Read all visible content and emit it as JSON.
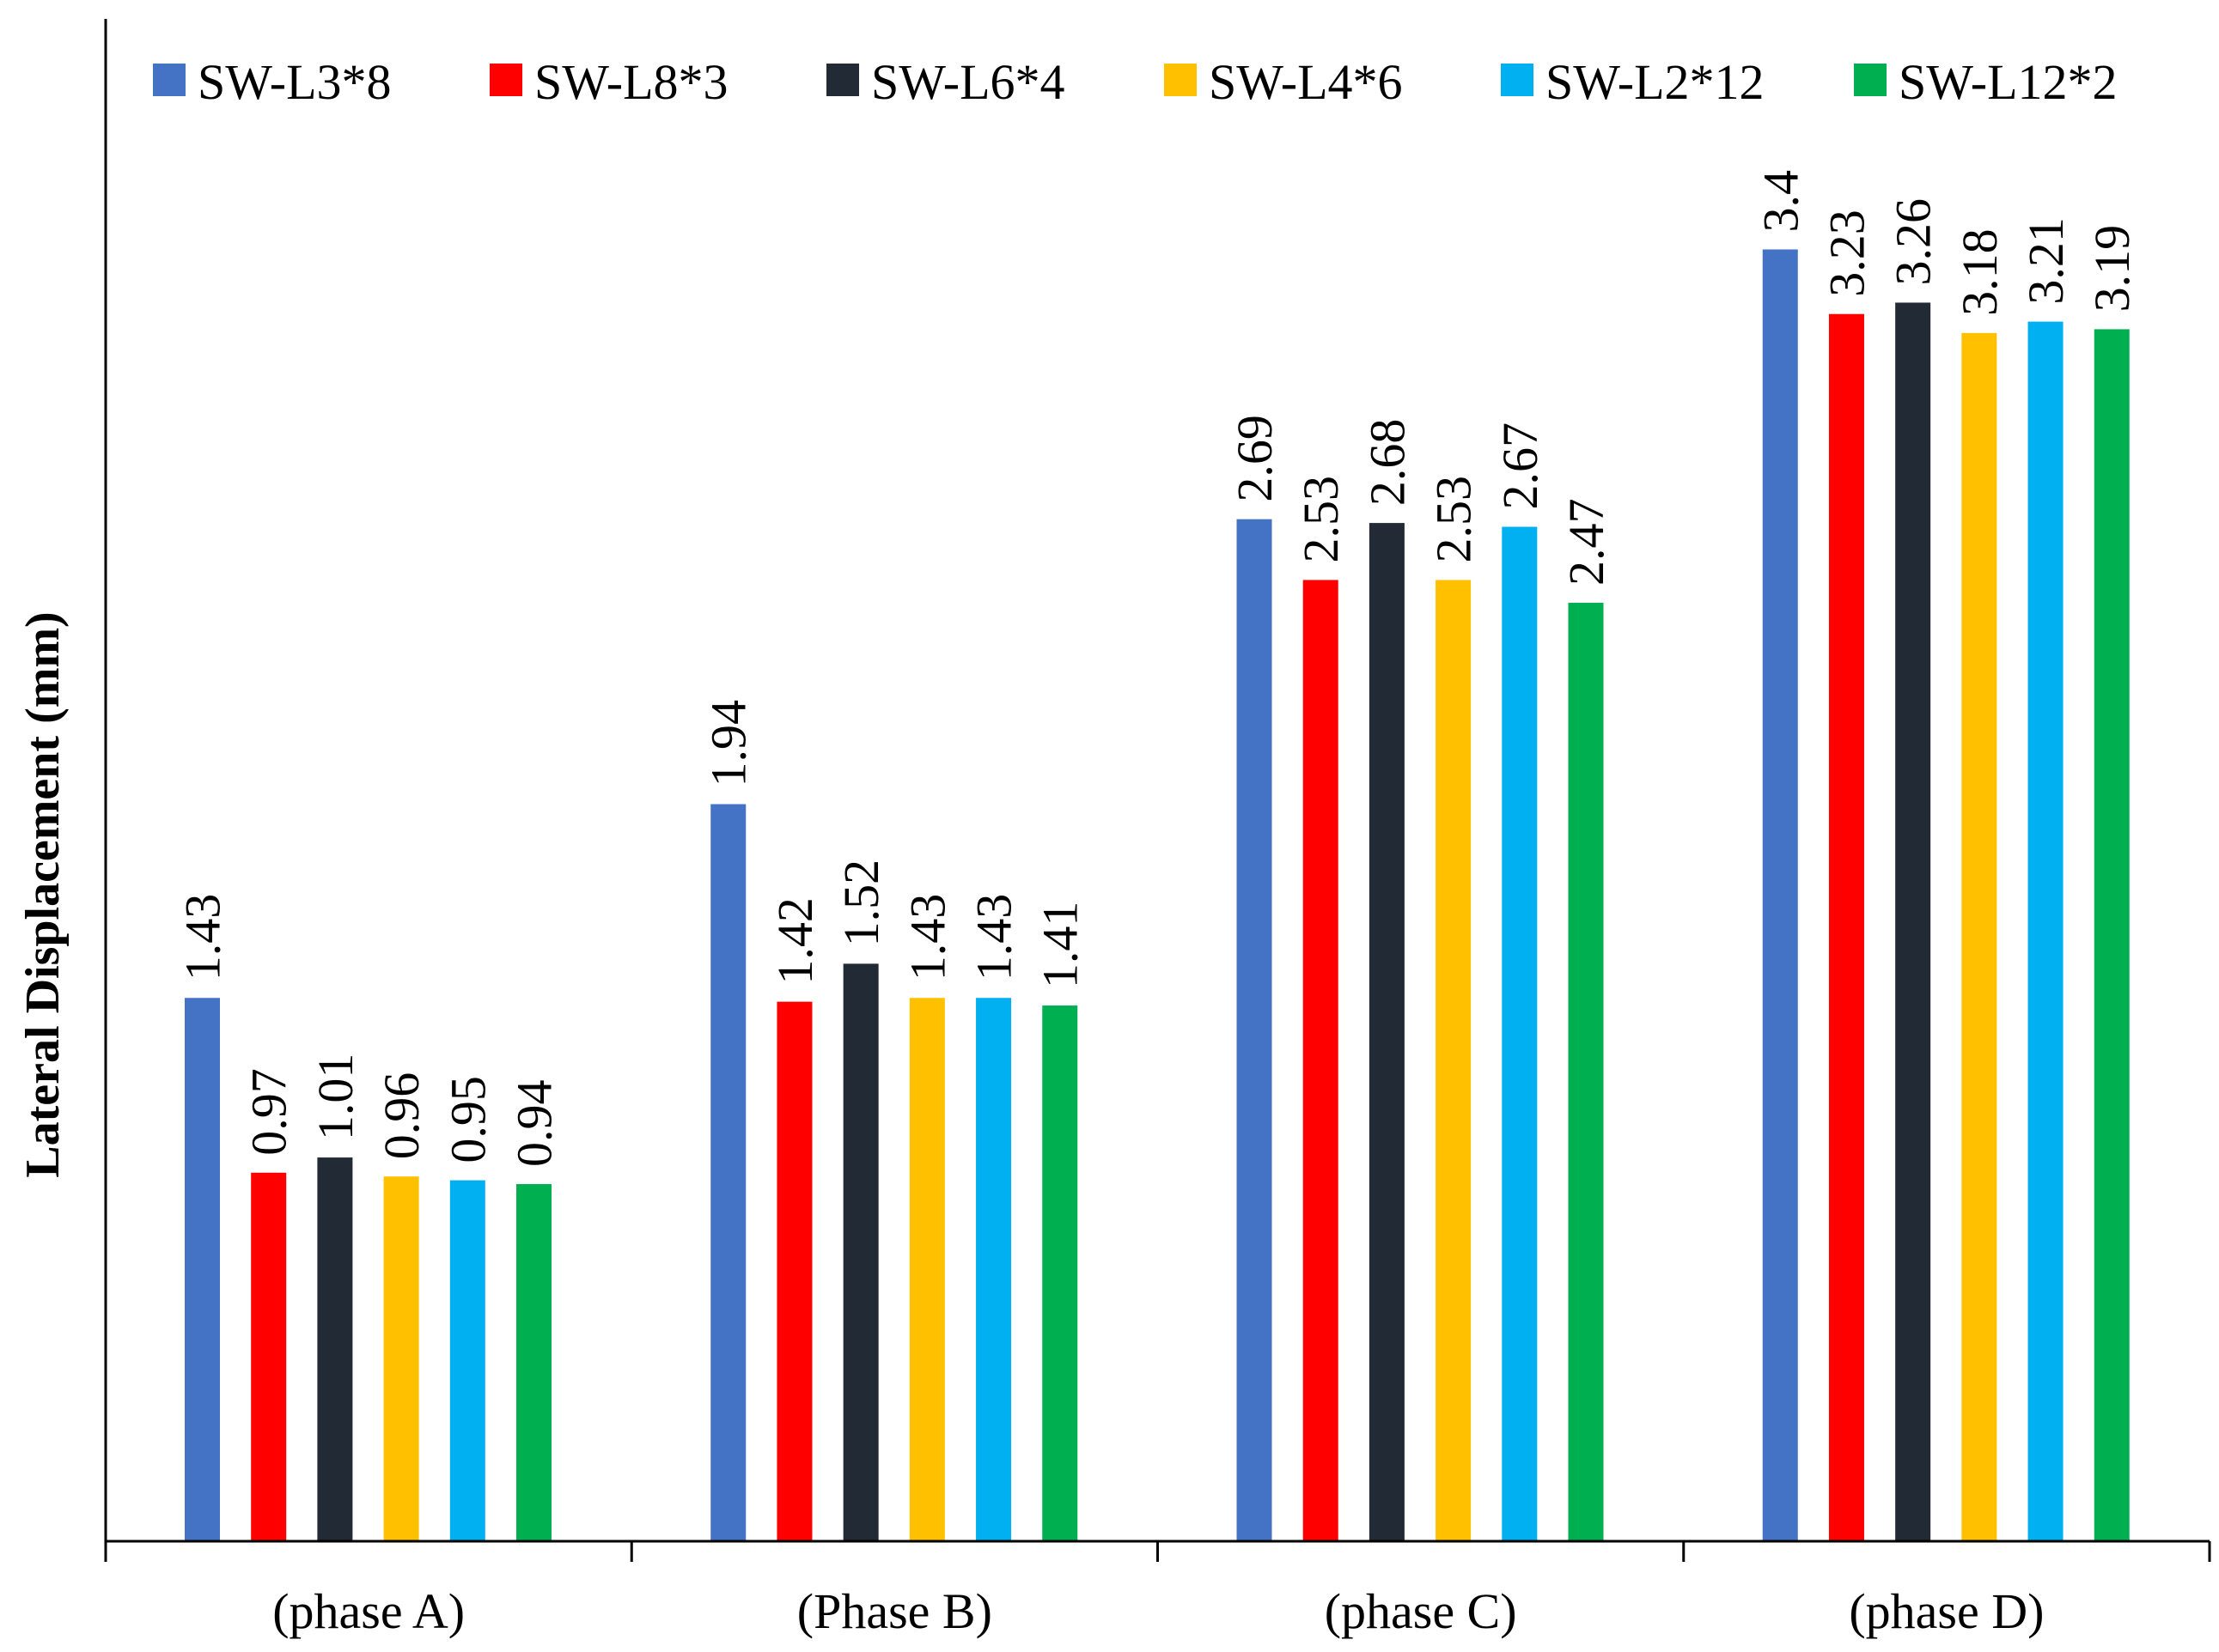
{
  "chart_data": {
    "type": "bar",
    "title": "",
    "xlabel": "",
    "ylabel": "Lateral Displacement (mm)",
    "ylim": [
      0,
      4
    ],
    "grid": false,
    "legend_position": "top",
    "categories": [
      "(phase A)",
      "(Phase B)",
      "(phase C)",
      "(phase D)"
    ],
    "series": [
      {
        "name": "SW-L3*8",
        "color": "#4472C4",
        "values": [
          1.43,
          1.94,
          2.69,
          3.4
        ],
        "labels": [
          "1.43",
          "1.94",
          "2.69",
          "3.4"
        ]
      },
      {
        "name": "SW-L8*3",
        "color": "#FF0000",
        "values": [
          0.97,
          1.42,
          2.53,
          3.23
        ],
        "labels": [
          "0.97",
          "1.42",
          "2.53",
          "3.23"
        ]
      },
      {
        "name": "SW-L6*4",
        "color": "#222A35",
        "values": [
          1.01,
          1.52,
          2.68,
          3.26
        ],
        "labels": [
          "1.01",
          "1.52",
          "2.68",
          "3.26"
        ]
      },
      {
        "name": "SW-L4*6",
        "color": "#FFC000",
        "values": [
          0.96,
          1.43,
          2.53,
          3.18
        ],
        "labels": [
          "0.96",
          "1.43",
          "2.53",
          "3.18"
        ]
      },
      {
        "name": "SW-L2*12",
        "color": "#00B0F0",
        "values": [
          0.95,
          1.43,
          2.67,
          3.21
        ],
        "labels": [
          "0.95",
          "1.43",
          "2.67",
          "3.21"
        ]
      },
      {
        "name": "SW-L12*2",
        "color": "#00B050",
        "values": [
          0.94,
          1.41,
          2.47,
          3.19
        ],
        "labels": [
          "0.94",
          "1.41",
          "2.47",
          "3.19"
        ]
      }
    ]
  }
}
